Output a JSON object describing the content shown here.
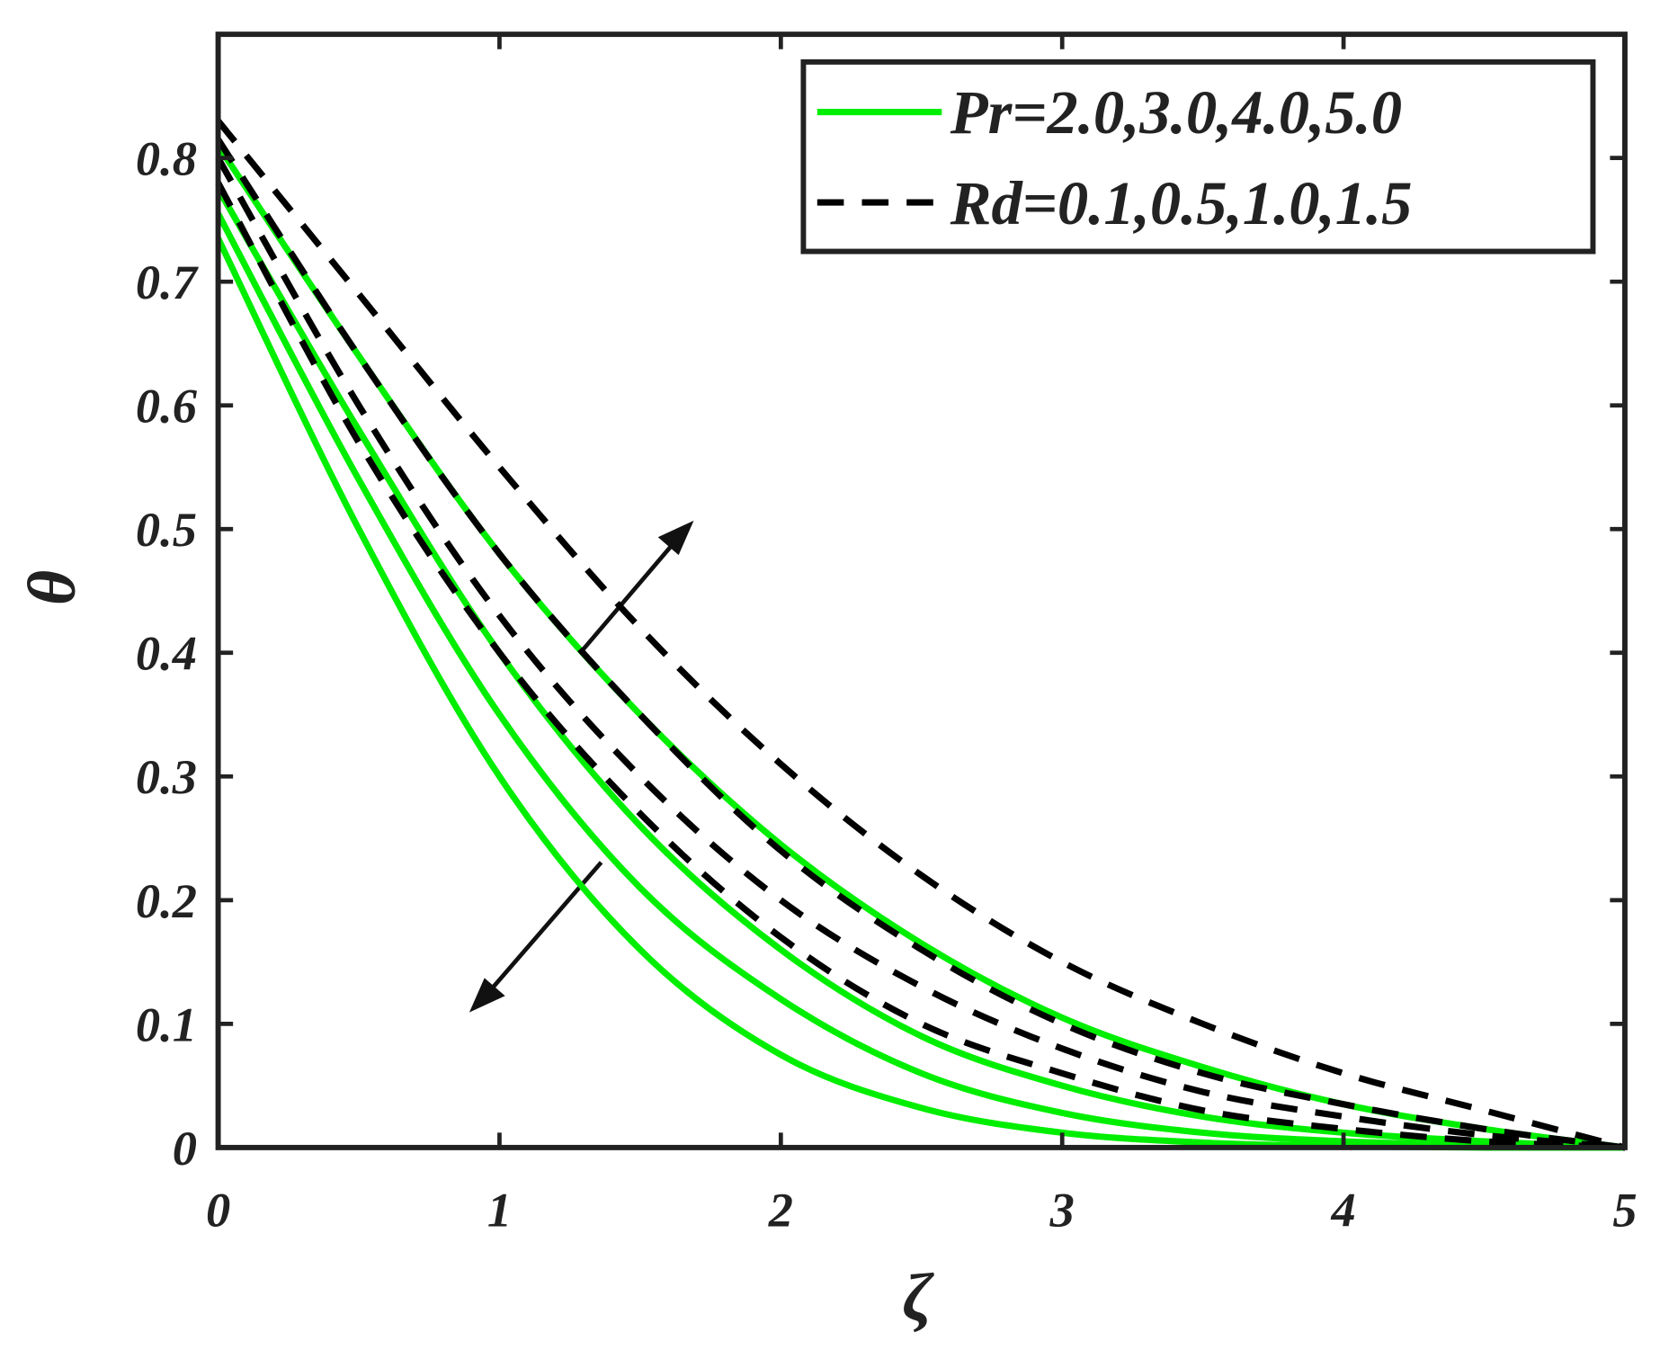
{
  "chart_data": {
    "type": "line",
    "xlabel": "ζ",
    "ylabel": "θ",
    "x": [
      0,
      0.5,
      1,
      1.5,
      2,
      2.5,
      3,
      3.5,
      4,
      4.5,
      5
    ],
    "xlim": [
      0,
      5
    ],
    "xticks": [
      0,
      1,
      2,
      3,
      4,
      5
    ],
    "ylim": [
      0,
      0.9
    ],
    "yticks": [
      0,
      0.1,
      0.2,
      0.3,
      0.4,
      0.5,
      0.6,
      0.7,
      0.8
    ],
    "legend_position": "upper right",
    "series": [
      {
        "name": "Pr=2.0,3.0,4.0,5.0",
        "color": "#00ee00",
        "dashed": false,
        "curves": [
          [
            0.81,
            0.64,
            0.48,
            0.35,
            0.245,
            0.165,
            0.105,
            0.065,
            0.035,
            0.015,
            0
          ],
          [
            0.775,
            0.58,
            0.4,
            0.26,
            0.16,
            0.09,
            0.05,
            0.025,
            0.012,
            0.005,
            0
          ],
          [
            0.755,
            0.54,
            0.35,
            0.21,
            0.12,
            0.06,
            0.028,
            0.012,
            0.005,
            0.002,
            0
          ],
          [
            0.735,
            0.5,
            0.3,
            0.16,
            0.075,
            0.032,
            0.012,
            0.004,
            0.001,
            0,
            0
          ]
        ]
      },
      {
        "name": "Rd=0.1,0.5,1.0,1.5",
        "color": "#000000",
        "dashed": true,
        "curves": [
          [
            0.83,
            0.69,
            0.55,
            0.42,
            0.31,
            0.22,
            0.15,
            0.1,
            0.06,
            0.03,
            0
          ],
          [
            0.815,
            0.64,
            0.48,
            0.35,
            0.24,
            0.16,
            0.1,
            0.06,
            0.035,
            0.015,
            0
          ],
          [
            0.8,
            0.6,
            0.43,
            0.3,
            0.2,
            0.13,
            0.08,
            0.045,
            0.025,
            0.01,
            0
          ],
          [
            0.78,
            0.57,
            0.4,
            0.27,
            0.17,
            0.1,
            0.06,
            0.03,
            0.015,
            0.005,
            0
          ]
        ]
      }
    ]
  }
}
